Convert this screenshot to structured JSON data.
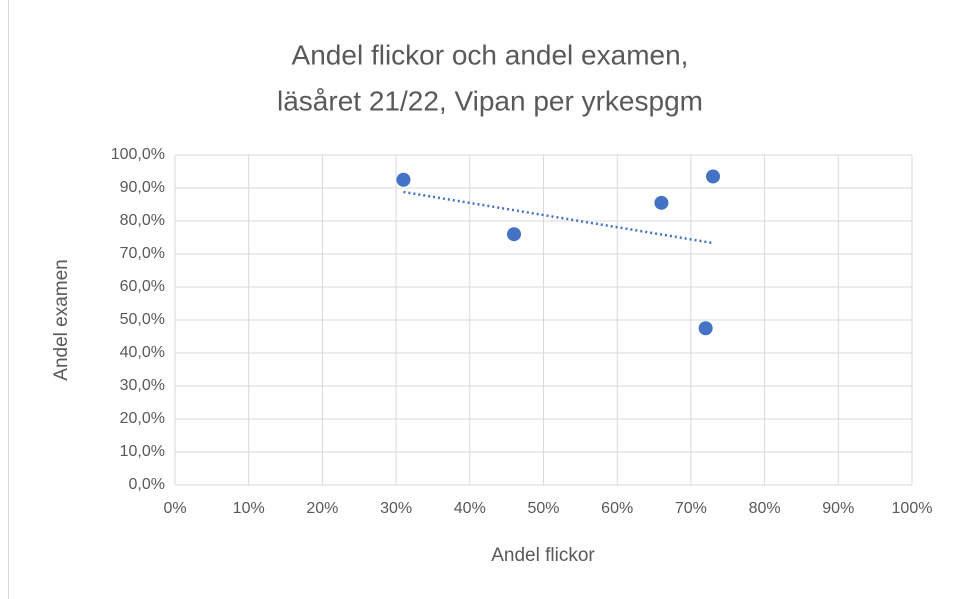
{
  "chart_data": {
    "type": "scatter",
    "title": [
      "Andel flickor och andel examen,",
      "läsåret 21/22, Vipan per yrkespgm"
    ],
    "x_label": "Andel flickor",
    "y_label": "Andel examen",
    "series": [
      {
        "color": "#4472c4",
        "x": [
          31,
          46,
          66,
          73,
          72
        ],
        "values": [
          92.5,
          76,
          85.5,
          93.5,
          47.5
        ]
      }
    ],
    "trendline": "linear",
    "trendline_style": "dotted",
    "xlim": [
      0,
      100
    ],
    "xticks": [
      {
        "value": 0,
        "label": "0%"
      },
      {
        "value": 10,
        "label": "10%"
      },
      {
        "value": 20,
        "label": "20%"
      },
      {
        "value": 30,
        "label": "30%"
      },
      {
        "value": 40,
        "label": "40%"
      },
      {
        "value": 50,
        "label": "50%"
      },
      {
        "value": 60,
        "label": "60%"
      },
      {
        "value": 70,
        "label": "70%"
      },
      {
        "value": 80,
        "label": "80%"
      },
      {
        "value": 90,
        "label": "90%"
      },
      {
        "value": 100,
        "label": "100%"
      }
    ],
    "ylim": [
      0,
      100
    ],
    "yticks": [
      {
        "value": 0,
        "label": "0,0%"
      },
      {
        "value": 10,
        "label": "10,0%"
      },
      {
        "value": 20,
        "label": "20,0%"
      },
      {
        "value": 30,
        "label": "30,0%"
      },
      {
        "value": 40,
        "label": "40,0%"
      },
      {
        "value": 50,
        "label": "50,0%"
      },
      {
        "value": 60,
        "label": "60,0%"
      },
      {
        "value": 70,
        "label": "70,0%"
      },
      {
        "value": 80,
        "label": "80,0%"
      },
      {
        "value": 90,
        "label": "90,0%"
      },
      {
        "value": 100,
        "label": "100,0%"
      }
    ],
    "grid": true
  }
}
